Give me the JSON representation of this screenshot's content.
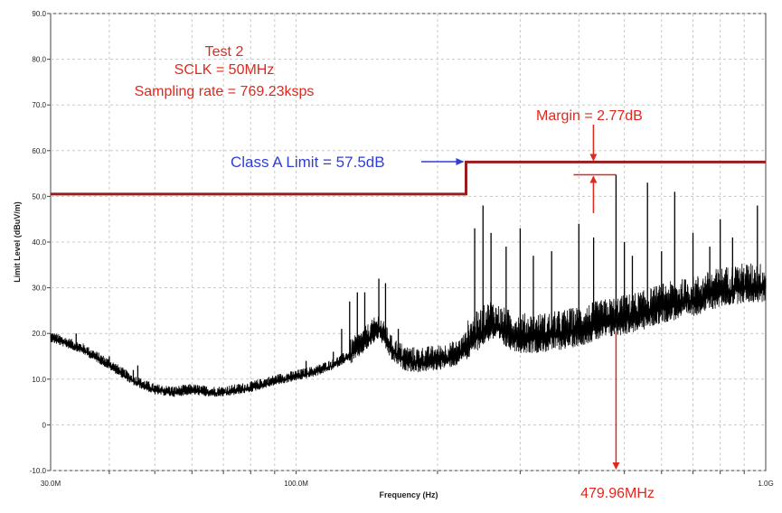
{
  "chart_data": {
    "type": "line",
    "xlabel": "Frequency (Hz)",
    "ylabel": "Limit Level (dBuV/m)",
    "xscale": "log",
    "xlim": [
      30000000,
      1000000000
    ],
    "ylim": [
      -10,
      90
    ],
    "grid": true,
    "x_ticks": [
      {
        "value": 30000000,
        "label": "30.0M"
      },
      {
        "value": 100000000,
        "label": "100.0M"
      },
      {
        "value": 1000000000,
        "label": "1.0G"
      }
    ],
    "y_ticks": [
      {
        "value": 90,
        "label": "90.0"
      },
      {
        "value": 80,
        "label": "80.0"
      },
      {
        "value": 70,
        "label": "70.0"
      },
      {
        "value": 60,
        "label": "60.0"
      },
      {
        "value": 50,
        "label": "50.0"
      },
      {
        "value": 40,
        "label": "40.0"
      },
      {
        "value": 30,
        "label": "30.0"
      },
      {
        "value": 20,
        "label": "20.0"
      },
      {
        "value": 10,
        "label": "10.0"
      },
      {
        "value": 0,
        "label": "0"
      },
      {
        "value": -10,
        "label": "-10.0"
      }
    ],
    "limit_line": {
      "color": "#9b1c1c",
      "points": [
        [
          30000000,
          50.5
        ],
        [
          230000000,
          50.5
        ],
        [
          230000000,
          57.5
        ],
        [
          1000000000,
          57.5
        ]
      ]
    },
    "emission": {
      "color": "#000000",
      "envelope": [
        [
          30000000,
          19
        ],
        [
          35000000,
          16.5
        ],
        [
          40000000,
          13
        ],
        [
          45000000,
          9.5
        ],
        [
          50000000,
          7.5
        ],
        [
          55000000,
          7
        ],
        [
          60000000,
          7.5
        ],
        [
          65000000,
          7
        ],
        [
          70000000,
          7
        ],
        [
          75000000,
          7.5
        ],
        [
          80000000,
          8
        ],
        [
          90000000,
          9.5
        ],
        [
          100000000,
          10.5
        ],
        [
          110000000,
          11.5
        ],
        [
          120000000,
          13
        ],
        [
          130000000,
          15
        ],
        [
          140000000,
          18
        ],
        [
          150000000,
          21
        ],
        [
          160000000,
          16
        ],
        [
          170000000,
          14
        ],
        [
          180000000,
          13.5
        ],
        [
          200000000,
          14
        ],
        [
          220000000,
          15
        ],
        [
          240000000,
          19
        ],
        [
          260000000,
          22
        ],
        [
          280000000,
          20
        ],
        [
          300000000,
          19
        ],
        [
          330000000,
          19
        ],
        [
          360000000,
          19.5
        ],
        [
          400000000,
          20.5
        ],
        [
          450000000,
          22
        ],
        [
          500000000,
          23
        ],
        [
          550000000,
          24
        ],
        [
          600000000,
          25.5
        ],
        [
          700000000,
          27
        ],
        [
          800000000,
          29
        ],
        [
          900000000,
          30
        ],
        [
          1000000000,
          30
        ]
      ],
      "peaks": [
        [
          34000000,
          20
        ],
        [
          40000000,
          15
        ],
        [
          45000000,
          12
        ],
        [
          46000000,
          13
        ],
        [
          105000000,
          14
        ],
        [
          120000000,
          16
        ],
        [
          125000000,
          21
        ],
        [
          130000000,
          27
        ],
        [
          135000000,
          29
        ],
        [
          140000000,
          29
        ],
        [
          150000000,
          32
        ],
        [
          155000000,
          31
        ],
        [
          165000000,
          21
        ],
        [
          240000000,
          43
        ],
        [
          250000000,
          48
        ],
        [
          260000000,
          42
        ],
        [
          280000000,
          39
        ],
        [
          300000000,
          43
        ],
        [
          320000000,
          37
        ],
        [
          350000000,
          38
        ],
        [
          400000000,
          44
        ],
        [
          430000000,
          41
        ],
        [
          479960000,
          54.73
        ],
        [
          500000000,
          40
        ],
        [
          520000000,
          37
        ],
        [
          560000000,
          53
        ],
        [
          600000000,
          38
        ],
        [
          640000000,
          51
        ],
        [
          700000000,
          42
        ],
        [
          760000000,
          39
        ],
        [
          800000000,
          45
        ],
        [
          850000000,
          41
        ],
        [
          960000000,
          48
        ]
      ]
    },
    "annotations": {
      "test_title": "Test 2",
      "sclk": "SCLK = 50MHz",
      "sampling": "Sampling rate = 769.23ksps",
      "class_limit": "Class A Limit = 57.5dB",
      "margin": "Margin = 2.77dB",
      "peak_freq": "479.96MHz"
    },
    "annotation_values": {
      "class_limit_db": 57.5,
      "margin_db": 2.77,
      "peak_freq_hz": 479960000
    },
    "colors": {
      "annotation_red": "#e0281e",
      "annotation_blue": "#2f3fd4",
      "limit": "#9b1c1c",
      "trace": "#000000",
      "grid": "#c8c8c8"
    }
  }
}
